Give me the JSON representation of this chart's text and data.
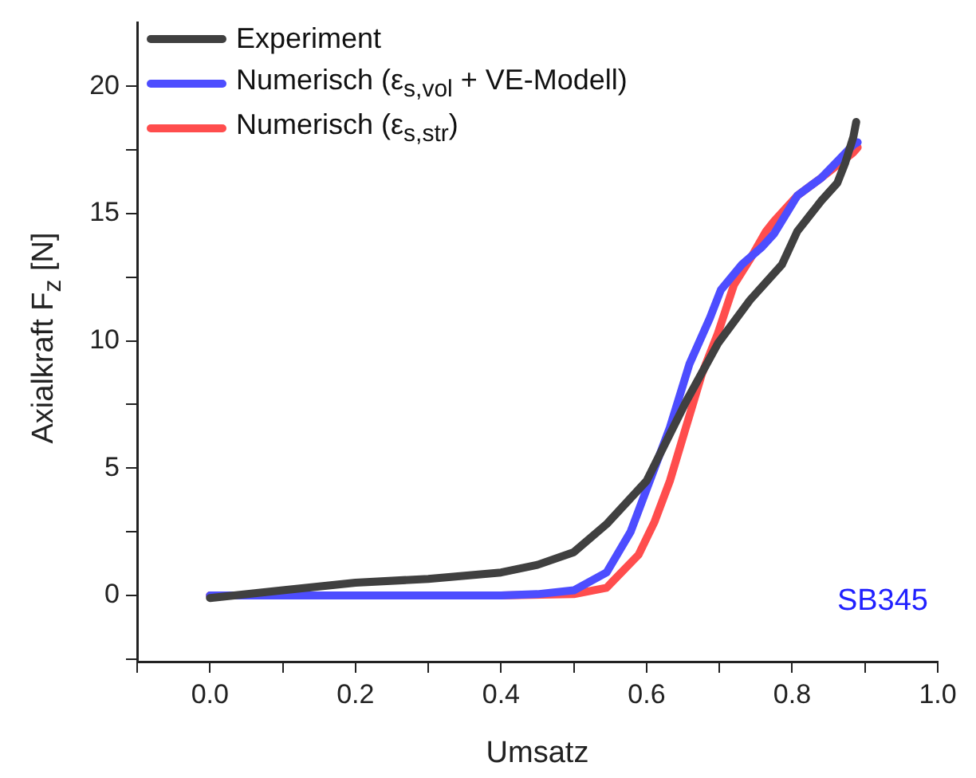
{
  "chart_data": {
    "type": "line",
    "xlabel": "Umsatz",
    "ylabel": "Axialkraft F$_{z}$ [N]",
    "xlim": [
      -0.1,
      1.0
    ],
    "xticks": [
      {
        "value": -0.1,
        "label": null
      },
      {
        "value": 0,
        "label": "0.0"
      },
      {
        "value": 0.1,
        "label": null
      },
      0.2,
      {
        "value": 0.3,
        "label": null
      },
      0.4,
      {
        "value": 0.5,
        "label": null
      },
      0.6,
      {
        "value": 0.7,
        "label": null
      },
      0.8,
      {
        "value": 0.9,
        "label": null
      },
      {
        "value": 1,
        "label": "1.0"
      }
    ],
    "ylim": [
      -2.6,
      22.5
    ],
    "yticks": [
      {
        "value": -2.5,
        "label": null
      },
      0,
      {
        "value": 2.5,
        "label": null
      },
      5,
      {
        "value": 7.5,
        "label": null
      },
      10,
      {
        "value": 12.5,
        "label": null
      },
      15,
      {
        "value": 17.5,
        "label": null
      },
      20
    ],
    "grid": false,
    "legend": "top left",
    "marker": "none",
    "line_style": "solid",
    "series": [
      {
        "name": "Experiment",
        "color": "#404040",
        "x": [
          0.0,
          0.1,
          0.2,
          0.3,
          0.4,
          0.45,
          0.5,
          0.545,
          0.6,
          0.654,
          0.698,
          0.742,
          0.786,
          0.807,
          0.84,
          0.862,
          0.873,
          0.884,
          0.888
        ],
        "values": [
          -0.1,
          0.2,
          0.5,
          0.65,
          0.9,
          1.2,
          1.7,
          2.8,
          4.5,
          7.6,
          9.9,
          11.6,
          13.0,
          14.3,
          15.5,
          16.2,
          17.0,
          18.0,
          18.6
        ]
      },
      {
        "name": "Numerisch (ε$_{s,vol}$ + VE-Modell)",
        "color": "#4d4dff",
        "x": [
          0.0,
          0.2,
          0.4,
          0.45,
          0.5,
          0.545,
          0.578,
          0.611,
          0.632,
          0.659,
          0.687,
          0.702,
          0.731,
          0.759,
          0.775,
          0.807,
          0.84,
          0.884,
          0.89
        ],
        "values": [
          0.0,
          0.0,
          0.0,
          0.05,
          0.2,
          0.9,
          2.5,
          5.0,
          6.6,
          9.1,
          10.9,
          12.0,
          13.0,
          13.7,
          14.2,
          15.7,
          16.4,
          17.7,
          17.8
        ]
      },
      {
        "name": "Numerisch (ε$_{s,str}$)",
        "color": "#ff4d4d",
        "x": [
          0.0,
          0.2,
          0.4,
          0.5,
          0.545,
          0.589,
          0.611,
          0.632,
          0.654,
          0.676,
          0.698,
          0.72,
          0.742,
          0.764,
          0.775,
          0.807,
          0.84,
          0.884,
          0.89
        ],
        "values": [
          0.0,
          0.0,
          0.0,
          0.05,
          0.3,
          1.6,
          2.9,
          4.5,
          6.6,
          8.7,
          10.3,
          12.2,
          13.2,
          14.3,
          14.7,
          15.7,
          16.4,
          17.4,
          17.6
        ]
      }
    ],
    "annotations": [
      "SB345"
    ]
  }
}
